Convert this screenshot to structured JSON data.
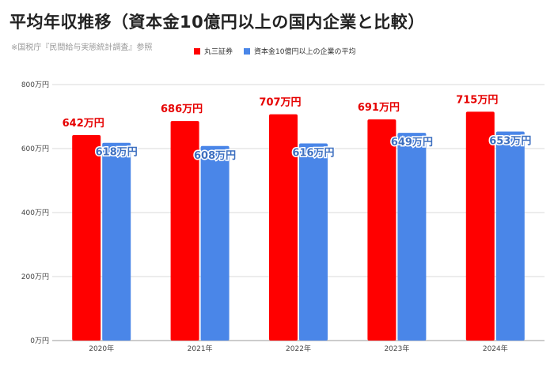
{
  "title": "平均年収推移（資本金10億円以上の国内企業と比較）",
  "source_note": "※国税庁『民間給与実態統計調査』参照",
  "chart_data": {
    "type": "bar",
    "categories": [
      "2020年",
      "2021年",
      "2022年",
      "2023年",
      "2024年"
    ],
    "series": [
      {
        "name": "丸三証券",
        "color": "#ff0000",
        "values": [
          642,
          686,
          707,
          691,
          715
        ],
        "labels": [
          "642万円",
          "686万円",
          "707万円",
          "691万円",
          "715万円"
        ]
      },
      {
        "name": "資本金10億円以上の企業の平均",
        "color": "#4a86e8",
        "values": [
          618,
          608,
          616,
          649,
          653
        ],
        "labels": [
          "618万円",
          "608万円",
          "616万円",
          "649万円",
          "653万円"
        ]
      }
    ],
    "ylim": [
      0,
      800
    ],
    "yticks": [
      0,
      200,
      400,
      600,
      800
    ],
    "ytick_labels": [
      "0万円",
      "200万円",
      "400万円",
      "600万円",
      "800万円"
    ],
    "grid": true,
    "legend_position": "top"
  }
}
